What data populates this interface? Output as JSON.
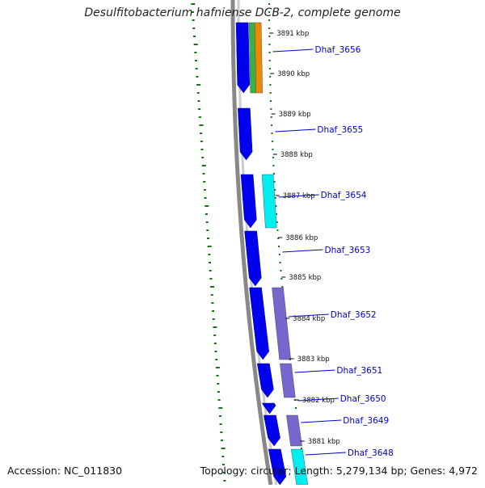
{
  "title": "Desulfitobacterium hafniense DCB-2, complete genome",
  "accession_text": "Accession: NC_011830",
  "summary_text": "Topology: circular; Length: 5,279,134 bp; Genes: 4,972",
  "colors": {
    "cds": "#0000ee",
    "backbone": "#888888",
    "gc_skew": "#117711",
    "label": "#0000cc"
  },
  "ticks": [
    {
      "label": "3891 kbp"
    },
    {
      "label": "3890 kbp"
    },
    {
      "label": "3889 kbp"
    },
    {
      "label": "3888 kbp"
    },
    {
      "label": "3887 kbp"
    },
    {
      "label": "3886 kbp"
    },
    {
      "label": "3885 kbp"
    },
    {
      "label": "3884 kbp"
    },
    {
      "label": "3883 kbp"
    },
    {
      "label": "3882 kbp"
    },
    {
      "label": "3881 kbp"
    }
  ],
  "genes": [
    {
      "label": "Dhaf_3656",
      "cog_color": "#3cb043",
      "cog_color2": "#ee8800"
    },
    {
      "label": "Dhaf_3655",
      "cog_color": null
    },
    {
      "label": "Dhaf_3654",
      "cog_color": "#00eeee"
    },
    {
      "label": "Dhaf_3653",
      "cog_color": null
    },
    {
      "label": "Dhaf_3652",
      "cog_color": "#7766cc"
    },
    {
      "label": "Dhaf_3651",
      "cog_color": "#7766cc"
    },
    {
      "label": "Dhaf_3650",
      "cog_color": null
    },
    {
      "label": "Dhaf_3649",
      "cog_color": "#7766cc"
    },
    {
      "label": "Dhaf_3648",
      "cog_color": "#00eeee"
    }
  ]
}
